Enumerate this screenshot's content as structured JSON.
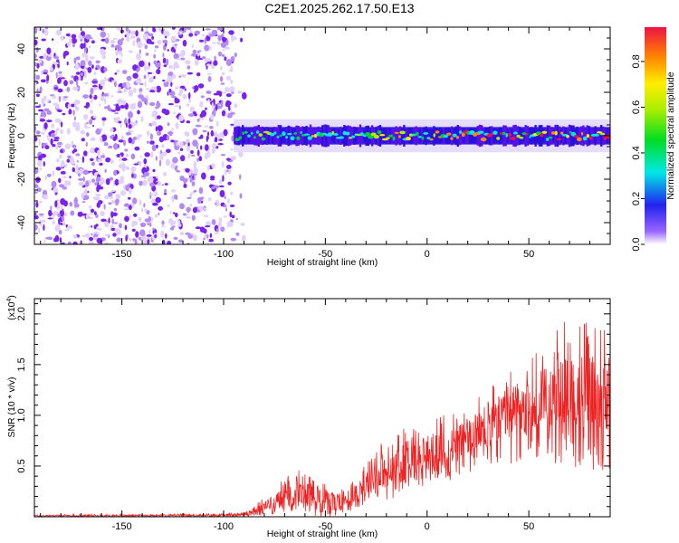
{
  "title": "C2E1.2025.262.17.50.E13",
  "chart_data": [
    {
      "type": "heatmap",
      "name": "spectrogram",
      "xlabel": "Height of straight line (km)",
      "ylabel": "Frequency (Hz)",
      "xlim": [
        -193,
        90
      ],
      "ylim": [
        -50,
        50
      ],
      "xticks": [
        -150,
        -100,
        -50,
        0,
        50
      ],
      "yticks": [
        -40,
        -20,
        0,
        20,
        40
      ],
      "noise_region_x": [
        -193,
        -95
      ],
      "band_start_x": -95,
      "band_center_hz": 0,
      "band_halfwidth_hz": 4,
      "colorbar": {
        "label": "Normalized spectral amplitude",
        "range": [
          0,
          0.95
        ],
        "ticks": [
          0.0,
          0.2,
          0.4,
          0.6,
          0.8
        ],
        "tick_labels": [
          "0.0",
          "0.2",
          "0.4",
          "0.6",
          "0.8"
        ]
      }
    },
    {
      "type": "line",
      "name": "snr",
      "xlabel": "Height of straight line (km)",
      "ylabel": "SNR (10 * v/v)",
      "scale_label": "(x10",
      "scale_exp": "4",
      "scale_close": ")",
      "xlim": [
        -193,
        90
      ],
      "ylim": [
        0,
        2.15
      ],
      "xticks": [
        -150,
        -100,
        -50,
        0,
        50
      ],
      "yticks": [
        0.5,
        1.0,
        1.5,
        2.0
      ],
      "ytick_labels": [
        "0.5",
        "1.0",
        "1.5",
        "2.0"
      ],
      "color": "#ee2222",
      "envelope": {
        "x": [
          -193,
          -100,
          -90,
          -80,
          -75,
          -70,
          -62,
          -58,
          -55,
          -50,
          -45,
          -40,
          -35,
          -30,
          -25,
          -20,
          -15,
          -10,
          0,
          10,
          20,
          30,
          40,
          50,
          60,
          70,
          80,
          90
        ],
        "y": [
          0.02,
          0.03,
          0.05,
          0.18,
          0.28,
          0.4,
          0.45,
          0.5,
          0.45,
          0.35,
          0.28,
          0.3,
          0.4,
          0.65,
          0.78,
          0.65,
          0.8,
          0.9,
          0.9,
          1.0,
          1.1,
          1.25,
          1.4,
          1.5,
          1.75,
          1.9,
          1.85,
          1.8
        ],
        "low": [
          0.0,
          0.0,
          0.0,
          0.0,
          0.02,
          0.05,
          0.05,
          0.05,
          0.0,
          0.0,
          0.0,
          0.05,
          0.05,
          0.1,
          0.15,
          0.1,
          0.2,
          0.3,
          0.3,
          0.35,
          0.4,
          0.45,
          0.5,
          0.55,
          0.5,
          0.5,
          0.45,
          0.45
        ]
      }
    }
  ]
}
